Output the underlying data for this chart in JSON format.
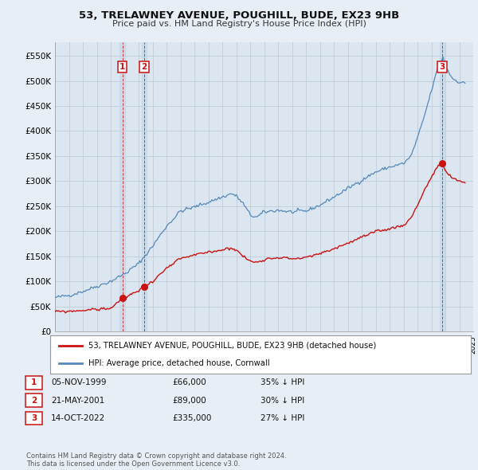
{
  "title": "53, TRELAWNEY AVENUE, POUGHILL, BUDE, EX23 9HB",
  "subtitle": "Price paid vs. HM Land Registry's House Price Index (HPI)",
  "ylabel_ticks": [
    "£0",
    "£50K",
    "£100K",
    "£150K",
    "£200K",
    "£250K",
    "£300K",
    "£350K",
    "£400K",
    "£450K",
    "£500K",
    "£550K"
  ],
  "ytick_vals": [
    0,
    50000,
    100000,
    150000,
    200000,
    250000,
    300000,
    350000,
    400000,
    450000,
    500000,
    550000
  ],
  "ylim": [
    0,
    577000
  ],
  "xlim_start": 1995.5,
  "xlim_end": 2025.0,
  "background_color": "#e8eef5",
  "plot_bg_color": "#dce6f0",
  "hpi_color": "#5588bb",
  "price_color": "#cc1111",
  "grid_color": "#c0ccd8",
  "transactions": [
    {
      "num": 1,
      "date_str": "05-NOV-1999",
      "price": 66000,
      "year": 1999.83,
      "hpi_pct": "35% ↓ HPI"
    },
    {
      "num": 2,
      "date_str": "21-MAY-2001",
      "price": 89000,
      "year": 2001.38,
      "hpi_pct": "30% ↓ HPI"
    },
    {
      "num": 3,
      "date_str": "14-OCT-2022",
      "price": 335000,
      "year": 2022.79,
      "hpi_pct": "27% ↓ HPI"
    }
  ],
  "legend_label_red": "53, TRELAWNEY AVENUE, POUGHILL, BUDE, EX23 9HB (detached house)",
  "legend_label_blue": "HPI: Average price, detached house, Cornwall",
  "footnote": "Contains HM Land Registry data © Crown copyright and database right 2024.\nThis data is licensed under the Open Government Licence v3.0."
}
